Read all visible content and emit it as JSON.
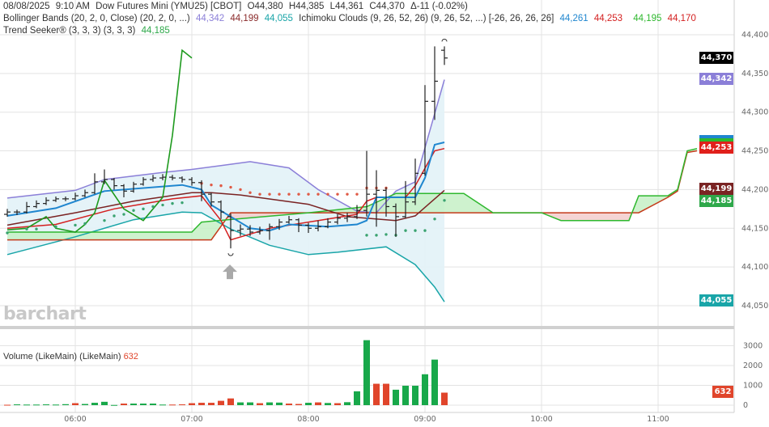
{
  "header": {
    "date": "08/08/2025",
    "time": "9:10 AM",
    "symbol": "Dow Futures Mini (YMU25) [CBOT]",
    "open": "O44,380",
    "high": "H44,385",
    "low": "L44,361",
    "close": "C44,370",
    "change": "Δ-11 (-0.02%)"
  },
  "indicators": {
    "bollinger": {
      "label": "Bollinger Bands (20, 2, 0, Close)  (20, 2, 0, ...)",
      "upper": "44,342",
      "middle": "44,199",
      "lower": "44,055"
    },
    "ichimoku": {
      "label": "Ichimoku Clouds (9, 26, 52, 26)  (9, 26, 52, ...) [-26, 26, 26, 26]",
      "conversion": "44,261",
      "base": "44,253",
      "span_a": "44,195",
      "span_b": "44,170"
    },
    "trend_seeker": {
      "label": "Trend Seeker® (3, 3, 3)  (3, 3, 3)",
      "value": "44,185"
    },
    "volume": {
      "label": "Volume (LikeMain)  (LikeMain)",
      "value": "632"
    }
  },
  "watermark": "barchart",
  "price_tags": [
    {
      "text": "44,370",
      "color": "#000000"
    },
    {
      "text": "44,342",
      "color": "#8b7fd8"
    },
    {
      "text": "44,253",
      "color": "#e0201b"
    },
    {
      "text": "44,199",
      "color": "#7a2323"
    },
    {
      "text": "44,185",
      "color": "#2ea84a"
    },
    {
      "text": "44,055",
      "color": "#19a5a8"
    }
  ],
  "volume_tag": {
    "text": "632",
    "color": "#e0452b"
  },
  "colors": {
    "bb_upper": "#8b7fd8",
    "bb_middle": "#7a2323",
    "bb_lower": "#19a5a8",
    "bb_fill": "#e2f2f7",
    "conversion": "#1f86cf",
    "base": "#d42020",
    "span_a": "#2eb82e",
    "span_b": "#c43a1a",
    "cloud_up": "#c6f0c6",
    "cloud_down": "#f3cccc",
    "lagging": "#1e9a1e",
    "ts_up": "#3aa370",
    "ts_down": "#e05a45",
    "vol_up": "#18a84a",
    "vol_down": "#e0452b",
    "bar": "#222222"
  },
  "chart_data": [
    {
      "type": "ohlc",
      "y_ticks": [
        "44,400",
        "44,350",
        "44,300",
        "44,250",
        "44,200",
        "44,150",
        "44,100",
        "44,050"
      ],
      "ylim": [
        44042,
        44412
      ],
      "x_ticks": [
        "06:00",
        "07:00",
        "08:00",
        "09:00",
        "10:00",
        "11:00"
      ],
      "xlim": [
        "05:25",
        "11:40"
      ],
      "grid": true,
      "bar_interval_min": 5,
      "bars": [
        {
          "t": "05:25",
          "o": 44168,
          "h": 44175,
          "l": 44165,
          "c": 44171
        },
        {
          "t": "05:30",
          "o": 44171,
          "h": 44174,
          "l": 44167,
          "c": 44171
        },
        {
          "t": "05:35",
          "o": 44171,
          "h": 44184,
          "l": 44169,
          "c": 44178
        },
        {
          "t": "05:40",
          "o": 44178,
          "h": 44186,
          "l": 44176,
          "c": 44182
        },
        {
          "t": "05:45",
          "o": 44182,
          "h": 44190,
          "l": 44180,
          "c": 44186
        },
        {
          "t": "05:50",
          "o": 44186,
          "h": 44191,
          "l": 44184,
          "c": 44188
        },
        {
          "t": "05:55",
          "o": 44188,
          "h": 44191,
          "l": 44185,
          "c": 44188
        },
        {
          "t": "06:00",
          "o": 44188,
          "h": 44196,
          "l": 44186,
          "c": 44192
        },
        {
          "t": "06:05",
          "o": 44192,
          "h": 44200,
          "l": 44190,
          "c": 44196
        },
        {
          "t": "06:10",
          "o": 44196,
          "h": 44221,
          "l": 44194,
          "c": 44210
        },
        {
          "t": "06:15",
          "o": 44210,
          "h": 44226,
          "l": 44207,
          "c": 44213
        },
        {
          "t": "06:20",
          "o": 44213,
          "h": 44215,
          "l": 44200,
          "c": 44205
        },
        {
          "t": "06:25",
          "o": 44205,
          "h": 44207,
          "l": 44190,
          "c": 44198
        },
        {
          "t": "06:30",
          "o": 44198,
          "h": 44210,
          "l": 44196,
          "c": 44207
        },
        {
          "t": "06:35",
          "o": 44207,
          "h": 44216,
          "l": 44205,
          "c": 44213
        },
        {
          "t": "06:40",
          "o": 44213,
          "h": 44219,
          "l": 44210,
          "c": 44215
        },
        {
          "t": "06:45",
          "o": 44215,
          "h": 44220,
          "l": 44212,
          "c": 44216
        },
        {
          "t": "06:50",
          "o": 44216,
          "h": 44219,
          "l": 44212,
          "c": 44215
        },
        {
          "t": "06:55",
          "o": 44215,
          "h": 44217,
          "l": 44209,
          "c": 44213
        },
        {
          "t": "07:00",
          "o": 44213,
          "h": 44216,
          "l": 44205,
          "c": 44209
        },
        {
          "t": "07:05",
          "o": 44209,
          "h": 44212,
          "l": 44185,
          "c": 44194
        },
        {
          "t": "07:10",
          "o": 44194,
          "h": 44196,
          "l": 44178,
          "c": 44184
        },
        {
          "t": "07:15",
          "o": 44184,
          "h": 44186,
          "l": 44162,
          "c": 44171
        },
        {
          "t": "07:20",
          "o": 44165,
          "h": 44169,
          "l": 44124,
          "c": 44147
        },
        {
          "t": "07:25",
          "o": 44147,
          "h": 44155,
          "l": 44140,
          "c": 44149
        },
        {
          "t": "07:30",
          "o": 44149,
          "h": 44154,
          "l": 44140,
          "c": 44145
        },
        {
          "t": "07:35",
          "o": 44145,
          "h": 44152,
          "l": 44142,
          "c": 44147
        },
        {
          "t": "07:40",
          "o": 44147,
          "h": 44156,
          "l": 44135,
          "c": 44152
        },
        {
          "t": "07:45",
          "o": 44152,
          "h": 44162,
          "l": 44148,
          "c": 44158
        },
        {
          "t": "07:50",
          "o": 44158,
          "h": 44166,
          "l": 44156,
          "c": 44161
        },
        {
          "t": "07:55",
          "o": 44161,
          "h": 44163,
          "l": 44145,
          "c": 44154
        },
        {
          "t": "08:00",
          "o": 44154,
          "h": 44157,
          "l": 44144,
          "c": 44150
        },
        {
          "t": "08:05",
          "o": 44150,
          "h": 44160,
          "l": 44146,
          "c": 44152
        },
        {
          "t": "08:10",
          "o": 44152,
          "h": 44163,
          "l": 44150,
          "c": 44158
        },
        {
          "t": "08:15",
          "o": 44158,
          "h": 44168,
          "l": 44155,
          "c": 44163
        },
        {
          "t": "08:20",
          "o": 44163,
          "h": 44170,
          "l": 44158,
          "c": 44165
        },
        {
          "t": "08:25",
          "o": 44165,
          "h": 44180,
          "l": 44162,
          "c": 44173
        },
        {
          "t": "08:30",
          "o": 44173,
          "h": 44250,
          "l": 44165,
          "c": 44194
        },
        {
          "t": "08:35",
          "o": 44194,
          "h": 44225,
          "l": 44152,
          "c": 44199
        },
        {
          "t": "08:40",
          "o": 44199,
          "h": 44203,
          "l": 44165,
          "c": 44178
        },
        {
          "t": "08:45",
          "o": 44178,
          "h": 44182,
          "l": 44139,
          "c": 44165
        },
        {
          "t": "08:50",
          "o": 44165,
          "h": 44211,
          "l": 44163,
          "c": 44184
        },
        {
          "t": "08:55",
          "o": 44184,
          "h": 44240,
          "l": 44180,
          "c": 44221
        },
        {
          "t": "09:00",
          "o": 44221,
          "h": 44335,
          "l": 44218,
          "c": 44314
        },
        {
          "t": "09:05",
          "o": 44314,
          "h": 44385,
          "l": 44290,
          "c": 44340
        },
        {
          "t": "09:10",
          "o": 44380,
          "h": 44385,
          "l": 44361,
          "c": 44370
        }
      ],
      "bollinger_upper": [
        [
          "05:25",
          44189
        ],
        [
          "06:00",
          44199
        ],
        [
          "06:15",
          44213
        ],
        [
          "06:45",
          44222
        ],
        [
          "07:00",
          44226
        ],
        [
          "07:15",
          44231
        ],
        [
          "07:30",
          44236
        ],
        [
          "07:50",
          44228
        ],
        [
          "08:05",
          44200
        ],
        [
          "08:25",
          44172
        ],
        [
          "08:35",
          44170
        ],
        [
          "08:45",
          44198
        ],
        [
          "08:55",
          44210
        ],
        [
          "09:00",
          44254
        ],
        [
          "09:05",
          44298
        ],
        [
          "09:10",
          44342
        ]
      ],
      "bollinger_middle": [
        [
          "05:25",
          44154
        ],
        [
          "06:00",
          44170
        ],
        [
          "06:30",
          44185
        ],
        [
          "07:00",
          44196
        ],
        [
          "07:10",
          44196
        ],
        [
          "07:25",
          44193
        ],
        [
          "08:00",
          44181
        ],
        [
          "08:20",
          44165
        ],
        [
          "08:45",
          44160
        ],
        [
          "08:55",
          44166
        ],
        [
          "09:10",
          44199
        ]
      ],
      "bollinger_lower": [
        [
          "05:25",
          44116
        ],
        [
          "06:00",
          44139
        ],
        [
          "06:30",
          44161
        ],
        [
          "06:55",
          44171
        ],
        [
          "07:05",
          44170
        ],
        [
          "07:20",
          44149
        ],
        [
          "07:40",
          44128
        ],
        [
          "08:00",
          44116
        ],
        [
          "08:15",
          44119
        ],
        [
          "08:40",
          44126
        ],
        [
          "08:55",
          44103
        ],
        [
          "09:05",
          44074
        ],
        [
          "09:10",
          44055
        ]
      ],
      "ichimoku_conversion": [
        [
          "05:25",
          44166
        ],
        [
          "05:50",
          44176
        ],
        [
          "06:15",
          44198
        ],
        [
          "06:55",
          44206
        ],
        [
          "07:05",
          44200
        ],
        [
          "07:10",
          44180
        ],
        [
          "07:30",
          44150
        ],
        [
          "07:40",
          44147
        ],
        [
          "07:50",
          44155
        ],
        [
          "08:10",
          44152
        ],
        [
          "08:25",
          44155
        ],
        [
          "08:30",
          44160
        ],
        [
          "08:35",
          44190
        ],
        [
          "08:55",
          44190
        ],
        [
          "09:00",
          44215
        ],
        [
          "09:05",
          44258
        ],
        [
          "09:10",
          44261
        ]
      ],
      "ichimoku_base": [
        [
          "05:25",
          44150
        ],
        [
          "05:50",
          44155
        ],
        [
          "06:20",
          44175
        ],
        [
          "06:50",
          44188
        ],
        [
          "07:05",
          44192
        ],
        [
          "07:15",
          44160
        ],
        [
          "07:20",
          44135
        ],
        [
          "07:40",
          44150
        ],
        [
          "08:05",
          44160
        ],
        [
          "08:25",
          44168
        ],
        [
          "08:30",
          44185
        ],
        [
          "08:35",
          44190
        ],
        [
          "08:50",
          44190
        ],
        [
          "08:55",
          44205
        ],
        [
          "09:05",
          44250
        ],
        [
          "09:10",
          44253
        ]
      ],
      "ichimoku_span_a": [
        [
          "05:25",
          44145
        ],
        [
          "07:00",
          44145
        ],
        [
          "07:05",
          44158
        ],
        [
          "08:00",
          44170
        ],
        [
          "08:30",
          44178
        ],
        [
          "08:45",
          44195
        ],
        [
          "09:20",
          44195
        ],
        [
          "09:35",
          44170
        ],
        [
          "10:00",
          44170
        ],
        [
          "10:10",
          44160
        ],
        [
          "10:45",
          44160
        ],
        [
          "10:50",
          44192
        ],
        [
          "11:05",
          44192
        ],
        [
          "11:10",
          44200
        ],
        [
          "11:15",
          44250
        ],
        [
          "11:20",
          44253
        ]
      ],
      "ichimoku_span_b": [
        [
          "05:25",
          44135
        ],
        [
          "07:10",
          44135
        ],
        [
          "07:20",
          44170
        ],
        [
          "10:50",
          44170
        ],
        [
          "11:05",
          44190
        ],
        [
          "11:10",
          44198
        ],
        [
          "11:15",
          44248
        ],
        [
          "11:20",
          44250
        ]
      ],
      "ichimoku_lagging": [
        [
          "05:25",
          44148
        ],
        [
          "05:35",
          44150
        ],
        [
          "05:45",
          44165
        ],
        [
          "05:50",
          44150
        ],
        [
          "06:00",
          44145
        ],
        [
          "06:05",
          44155
        ],
        [
          "06:10",
          44170
        ],
        [
          "06:15",
          44212
        ],
        [
          "06:25",
          44175
        ],
        [
          "06:35",
          44160
        ],
        [
          "06:45",
          44190
        ],
        [
          "06:50",
          44270
        ],
        [
          "06:55",
          44380
        ],
        [
          "07:00",
          44370
        ]
      ],
      "trend_seeker_up": [
        [
          "05:25",
          44144
        ],
        [
          "05:35",
          44149
        ],
        [
          "05:40",
          44149
        ],
        [
          "05:50",
          44152
        ],
        [
          "06:00",
          44154
        ],
        [
          "06:05",
          44156
        ],
        [
          "06:15",
          44160
        ],
        [
          "06:20",
          44166
        ],
        [
          "06:25",
          44168
        ],
        [
          "06:30",
          44173
        ],
        [
          "06:35",
          44175
        ],
        [
          "06:40",
          44178
        ],
        [
          "06:45",
          44180
        ],
        [
          "06:50",
          44182
        ],
        [
          "06:55",
          44183
        ],
        [
          "08:30",
          44141
        ],
        [
          "08:35",
          44141
        ],
        [
          "08:40",
          44142
        ],
        [
          "08:45",
          44141
        ],
        [
          "08:50",
          44147
        ],
        [
          "08:55",
          44147
        ],
        [
          "09:00",
          44147
        ],
        [
          "09:05",
          44162
        ],
        [
          "09:10",
          44186
        ]
      ],
      "trend_seeker_down": [
        [
          "07:05",
          44208
        ],
        [
          "07:10",
          44206
        ],
        [
          "07:15",
          44205
        ],
        [
          "07:20",
          44203
        ],
        [
          "07:25",
          44200
        ],
        [
          "07:30",
          44196
        ],
        [
          "07:35",
          44194
        ],
        [
          "07:40",
          44194
        ],
        [
          "07:45",
          44194
        ],
        [
          "07:50",
          44194
        ],
        [
          "07:55",
          44194
        ],
        [
          "08:00",
          44194
        ],
        [
          "08:05",
          44194
        ],
        [
          "08:10",
          44194
        ],
        [
          "08:15",
          44194
        ],
        [
          "08:20",
          44194
        ],
        [
          "08:25",
          44194
        ],
        [
          "08:30",
          44202
        ],
        [
          "08:35",
          44202
        ],
        [
          "08:40",
          44202
        ]
      ]
    },
    {
      "type": "bar",
      "title": "Volume (LikeMain)  (LikeMain)",
      "y_ticks": [
        "0",
        "1000",
        "2000",
        "3000"
      ],
      "ylim": [
        0,
        3600
      ],
      "x": [
        "05:25",
        "05:30",
        "05:35",
        "05:40",
        "05:45",
        "05:50",
        "05:55",
        "06:00",
        "06:05",
        "06:10",
        "06:15",
        "06:20",
        "06:25",
        "06:30",
        "06:35",
        "06:40",
        "06:45",
        "06:50",
        "06:55",
        "07:00",
        "07:05",
        "07:10",
        "07:15",
        "07:20",
        "07:25",
        "07:30",
        "07:35",
        "07:40",
        "07:45",
        "07:50",
        "07:55",
        "08:00",
        "08:05",
        "08:10",
        "08:15",
        "08:20",
        "08:25",
        "08:30",
        "08:35",
        "08:40",
        "08:45",
        "08:50",
        "08:55",
        "09:00",
        "09:05",
        "09:10"
      ],
      "values": [
        20,
        40,
        30,
        30,
        40,
        30,
        50,
        100,
        60,
        120,
        170,
        10,
        80,
        80,
        80,
        80,
        30,
        30,
        40,
        100,
        120,
        120,
        220,
        340,
        140,
        140,
        100,
        140,
        130,
        80,
        60,
        120,
        140,
        110,
        100,
        150,
        700,
        3280,
        1080,
        1080,
        780,
        980,
        980,
        1560,
        2300,
        632
      ],
      "direction": [
        "d",
        "u",
        "u",
        "u",
        "u",
        "u",
        "u",
        "d",
        "u",
        "u",
        "u",
        "u",
        "d",
        "u",
        "u",
        "u",
        "u",
        "d",
        "d",
        "d",
        "d",
        "d",
        "d",
        "d",
        "u",
        "u",
        "d",
        "u",
        "u",
        "d",
        "d",
        "u",
        "d",
        "u",
        "d",
        "u",
        "u",
        "u",
        "d",
        "d",
        "u",
        "u",
        "u",
        "u",
        "u",
        "d"
      ]
    }
  ]
}
